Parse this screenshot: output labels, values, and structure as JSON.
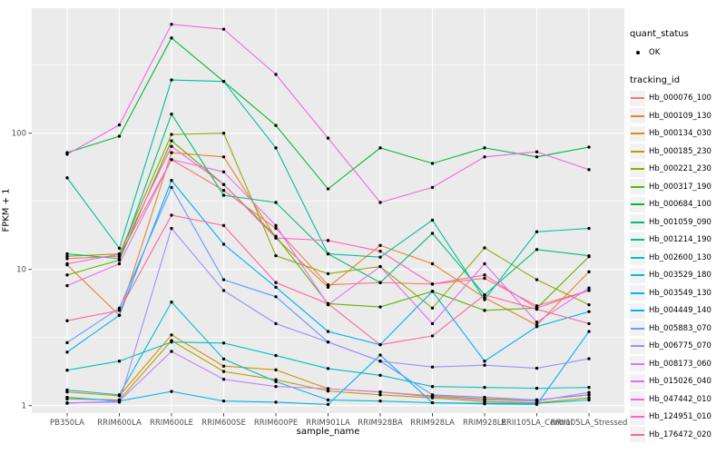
{
  "figure": {
    "panel_bg": "#EBEBEB",
    "grid_color": "#FFFFFF",
    "tick_color": "#333333",
    "tick_label_color": "#4D4D4D",
    "point_color": "#000000"
  },
  "chart_data": {
    "type": "line",
    "title": "",
    "xlabel": "sample_name",
    "ylabel": "FPKM + 1",
    "y_scale": "log10",
    "y_ticks": [
      1,
      10,
      100
    ],
    "ylim": [
      0.88,
      830
    ],
    "grid": true,
    "legend": {
      "position": "right",
      "quant_status_title": "quant_status",
      "quant_status_items": [
        "OK"
      ],
      "tracking_id_title": "tracking_id"
    },
    "categories": [
      "PB350LA",
      "RRIM600LA",
      "RRIM600LE",
      "RRIM600SE",
      "RRIM600PE",
      "RRIM901LA",
      "RRIM928BA",
      "RRIM928LA",
      "RRIM928LE",
      "RRII105LA_Control",
      "RRII105LA_Stressed"
    ],
    "series": [
      {
        "name": "Hb_000076_100",
        "color": "#F8766D",
        "values": [
          12.0,
          12.5,
          64,
          38,
          20,
          7.7,
          8.0,
          7.8,
          8.6,
          5.4,
          7.0
        ]
      },
      {
        "name": "Hb_000109_130",
        "color": "#E88526",
        "values": [
          10.8,
          4.6,
          72,
          67,
          17,
          7.4,
          15,
          11,
          6.2,
          3.9,
          9.6
        ]
      },
      {
        "name": "Hb_000134_030",
        "color": "#D39200",
        "values": [
          1.26,
          1.18,
          3.3,
          1.95,
          1.83,
          1.33,
          1.26,
          1.18,
          1.12,
          1.1,
          1.2
        ]
      },
      {
        "name": "Hb_000185_230",
        "color": "#B79F00",
        "values": [
          1.12,
          1.1,
          3.0,
          1.78,
          1.55,
          1.28,
          1.2,
          1.14,
          1.07,
          1.05,
          1.14
        ]
      },
      {
        "name": "Hb_000221_230",
        "color": "#93AA00",
        "values": [
          12.5,
          13.0,
          98,
          100,
          12.6,
          9.3,
          10.5,
          5.2,
          14.4,
          8.4,
          5.5
        ]
      },
      {
        "name": "Hb_000317_190",
        "color": "#5EB300",
        "values": [
          9.1,
          11.7,
          88,
          42,
          17.5,
          5.6,
          5.3,
          6.9,
          5.0,
          5.2,
          12.4
        ]
      },
      {
        "name": "Hb_000684_100",
        "color": "#00BA38",
        "values": [
          72,
          95,
          500,
          240,
          114,
          39,
          78,
          60,
          78,
          67,
          79
        ]
      },
      {
        "name": "Hb_001059_090",
        "color": "#00BF74",
        "values": [
          13.0,
          12.0,
          138,
          35,
          31,
          13.0,
          8.0,
          18.4,
          6.5,
          14.0,
          12.6
        ]
      },
      {
        "name": "Hb_001214_190",
        "color": "#00C19F",
        "values": [
          47,
          14.3,
          246,
          240,
          78,
          13.0,
          12.3,
          23,
          6.0,
          18.9,
          20
        ]
      },
      {
        "name": "Hb_002600_130",
        "color": "#00C0C0",
        "values": [
          1.82,
          2.12,
          2.93,
          2.88,
          2.33,
          1.87,
          1.67,
          1.38,
          1.36,
          1.34,
          1.36
        ]
      },
      {
        "name": "Hb_003529_180",
        "color": "#00BCD8",
        "values": [
          1.3,
          1.2,
          5.75,
          2.2,
          1.5,
          1.1,
          1.08,
          1.05,
          1.04,
          1.04,
          1.1
        ]
      },
      {
        "name": "Hb_003549_130",
        "color": "#00B4EF",
        "values": [
          1.15,
          1.08,
          1.27,
          1.08,
          1.06,
          1.02,
          2.35,
          1.05,
          1.03,
          1.02,
          3.5
        ]
      },
      {
        "name": "Hb_004449_140",
        "color": "#00B0F6",
        "values": [
          2.47,
          4.6,
          45,
          15.3,
          7.4,
          3.5,
          2.8,
          6.9,
          2.12,
          3.8,
          4.9
        ]
      },
      {
        "name": "Hb_005883_070",
        "color": "#619CFF",
        "values": [
          2.9,
          5.2,
          40,
          8.4,
          6.3,
          2.93,
          2.12,
          1.2,
          1.15,
          1.1,
          1.2
        ]
      },
      {
        "name": "Hb_006775_070",
        "color": "#A58AFF",
        "values": [
          1.05,
          1.06,
          20,
          7.0,
          4.0,
          2.93,
          2.12,
          1.92,
          1.98,
          1.88,
          2.21
        ]
      },
      {
        "name": "Hb_008173_060",
        "color": "#C77CFF",
        "values": [
          1.04,
          1.08,
          2.5,
          1.56,
          1.38,
          1.33,
          1.26,
          1.16,
          1.1,
          1.08,
          1.25
        ]
      },
      {
        "name": "Hb_015026_040",
        "color": "#E36EF6",
        "values": [
          7.6,
          11,
          64,
          52,
          21,
          5.5,
          10.5,
          4.0,
          11,
          4.1,
          7.3
        ]
      },
      {
        "name": "Hb_047442_010",
        "color": "#EE67E5",
        "values": [
          70,
          115,
          630,
          580,
          270,
          92,
          31,
          40,
          67,
          73,
          54
        ]
      },
      {
        "name": "Hb_124951_010",
        "color": "#FC61C7",
        "values": [
          11,
          12.9,
          80,
          42,
          17,
          16.3,
          13.6,
          7.8,
          9.1,
          5.2,
          7.0
        ]
      },
      {
        "name": "Hb_176472_020",
        "color": "#FF6699",
        "values": [
          4.2,
          5.0,
          25,
          21,
          8.0,
          5.6,
          2.8,
          3.25,
          6.5,
          5.1,
          4.0
        ]
      }
    ]
  }
}
